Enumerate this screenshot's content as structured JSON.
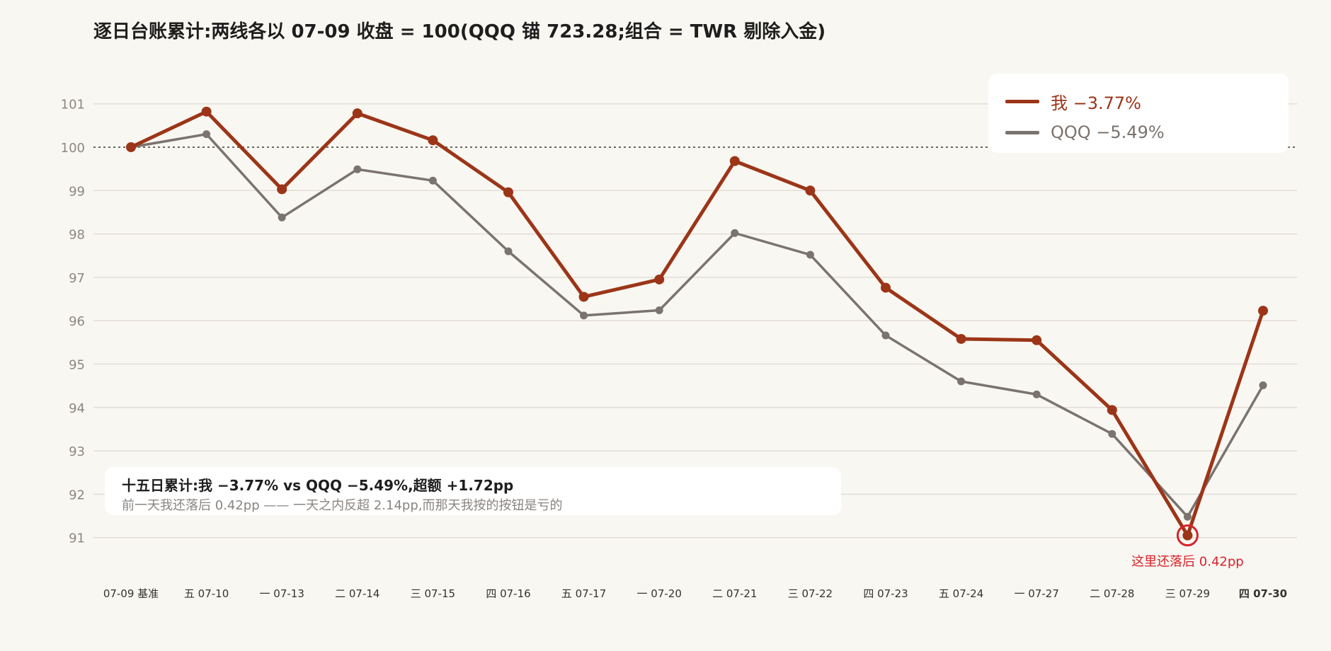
{
  "chart_data": {
    "type": "line",
    "title": "逐日台账累计:两线各以 07-09 收盘 = 100(QQQ 锚 723.28;组合 = TWR 剔除入金)",
    "xlabel": "",
    "ylabel": "",
    "categories": [
      "07-09 基准",
      "五 07-10",
      "一 07-13",
      "二 07-14",
      "三 07-15",
      "四 07-16",
      "五 07-17",
      "一 07-20",
      "二 07-21",
      "三 07-22",
      "四 07-23",
      "五 07-24",
      "一 07-27",
      "二 07-28",
      "三 07-29",
      "四 07-30"
    ],
    "ylim": [
      90,
      102
    ],
    "yticks": [
      91,
      92,
      93,
      94,
      95,
      96,
      97,
      98,
      99,
      100,
      101
    ],
    "baseline": 100,
    "grid": true,
    "legend_position": "top-right",
    "series": [
      {
        "name": "我 −3.77%",
        "color": "#9c3518",
        "values": [
          100.0,
          100.82,
          99.03,
          100.78,
          100.16,
          98.96,
          96.55,
          96.95,
          99.68,
          99.0,
          96.76,
          95.58,
          95.55,
          93.94,
          91.05,
          96.23
        ]
      },
      {
        "name": "QQQ −5.49%",
        "color": "#7a736e",
        "values": [
          100.0,
          100.3,
          98.38,
          99.49,
          99.23,
          97.6,
          96.12,
          96.24,
          98.02,
          97.52,
          95.66,
          94.6,
          94.3,
          93.39,
          91.48,
          94.51
        ]
      }
    ],
    "annotation": {
      "text": "这里还落后 0.42pp",
      "category_index": 14,
      "color": "#d8232a"
    },
    "summary": {
      "headline": "十五日累计:我 −3.77% vs QQQ −5.49%,超额 +1.72pp",
      "detail": "前一天我还落后 0.42pp —— 一天之内反超 2.14pp,而那天我按的按钮是亏的"
    }
  }
}
